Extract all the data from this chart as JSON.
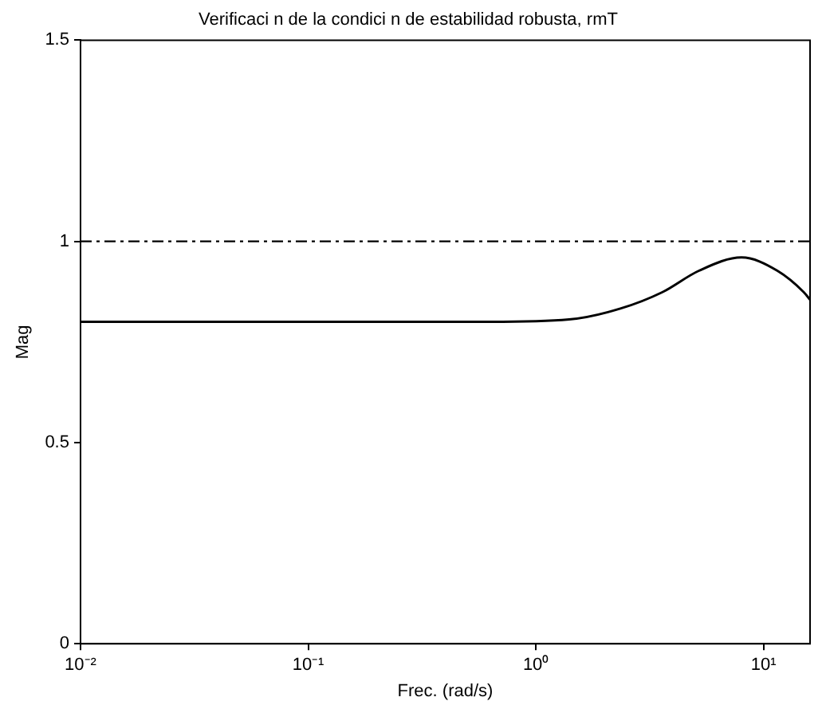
{
  "chart_data": {
    "type": "line",
    "title": "Verificaci n de la condici n de estabilidad robusta, rmT",
    "xlabel": "Frec. (rad/s)",
    "ylabel": "Mag",
    "log": "x",
    "x": [
      0.01,
      0.1,
      0.63,
      1.4,
      2.35,
      3.6,
      5.2,
      8,
      11.5,
      15,
      16
    ],
    "series": [
      {
        "color": "#000000",
        "values": [
          0.8,
          0.8,
          0.8,
          0.806,
          0.833,
          0.874,
          0.927,
          0.96,
          0.927,
          0.874,
          0.855
        ]
      }
    ],
    "xlim": [
      0.01,
      16
    ],
    "xticks": [
      {
        "value": 0.01,
        "label": "10⁻²"
      },
      {
        "value": 0.1,
        "label": "10⁻¹"
      },
      {
        "value": 1,
        "label": "10⁰"
      },
      {
        "value": 10,
        "label": "10¹"
      }
    ],
    "ylim": [
      0,
      1.5
    ],
    "yticks": [
      0,
      0.5,
      1,
      1.5
    ],
    "grid": false,
    "legend": false,
    "marker": "none",
    "line_style": "solid",
    "ref_lines": [
      {
        "axis": "y",
        "value": 1,
        "color": "#000000",
        "line_style": "dashed"
      }
    ]
  }
}
